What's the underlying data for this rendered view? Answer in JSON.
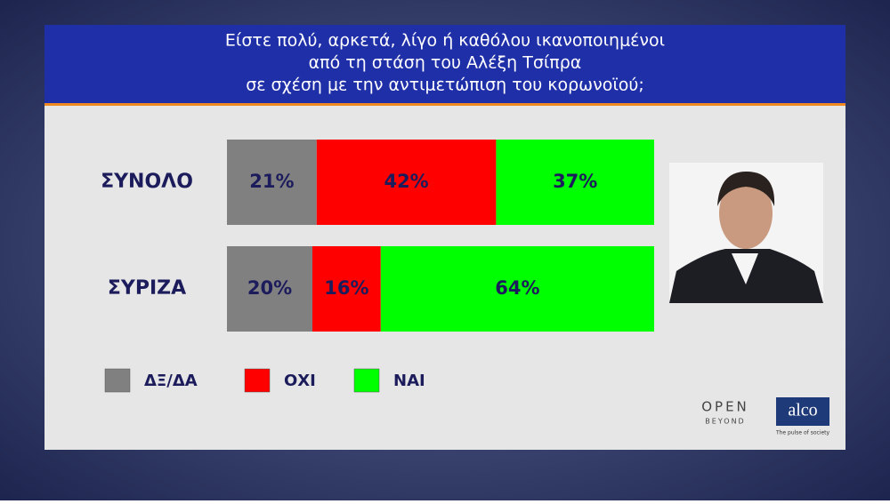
{
  "chart_data": {
    "type": "stacked-bar-horizontal",
    "title": [
      "Είστε πολύ, αρκετά, λίγο ή καθόλου ικανοποιημένοι",
      "από τη στάση του Αλέξη Τσίπρα",
      "σε σχέση με την αντιμετώπιση του κορωνοϊού;"
    ],
    "categories": [
      "ΣΥΝΟΛΟ",
      "ΣΥΡΙΖΑ"
    ],
    "xlim": [
      0,
      100
    ],
    "series": [
      {
        "name": "ΔΞ/ΔΑ",
        "color": "#808080",
        "values": [
          21,
          20
        ],
        "value_labels": [
          "21%",
          "20%"
        ]
      },
      {
        "name": "ΟΧΙ",
        "color": "#ff0000",
        "values": [
          42,
          16
        ],
        "value_labels": [
          "42%",
          "16%"
        ]
      },
      {
        "name": "ΝΑΙ",
        "color": "#00ff00",
        "values": [
          37,
          64
        ],
        "value_labels": [
          "37%",
          "64%"
        ]
      }
    ]
  },
  "logos": {
    "open": "OPEN",
    "open_sub": "BEYOND",
    "alco": "alco",
    "alco_sub": "The pulse of society"
  }
}
